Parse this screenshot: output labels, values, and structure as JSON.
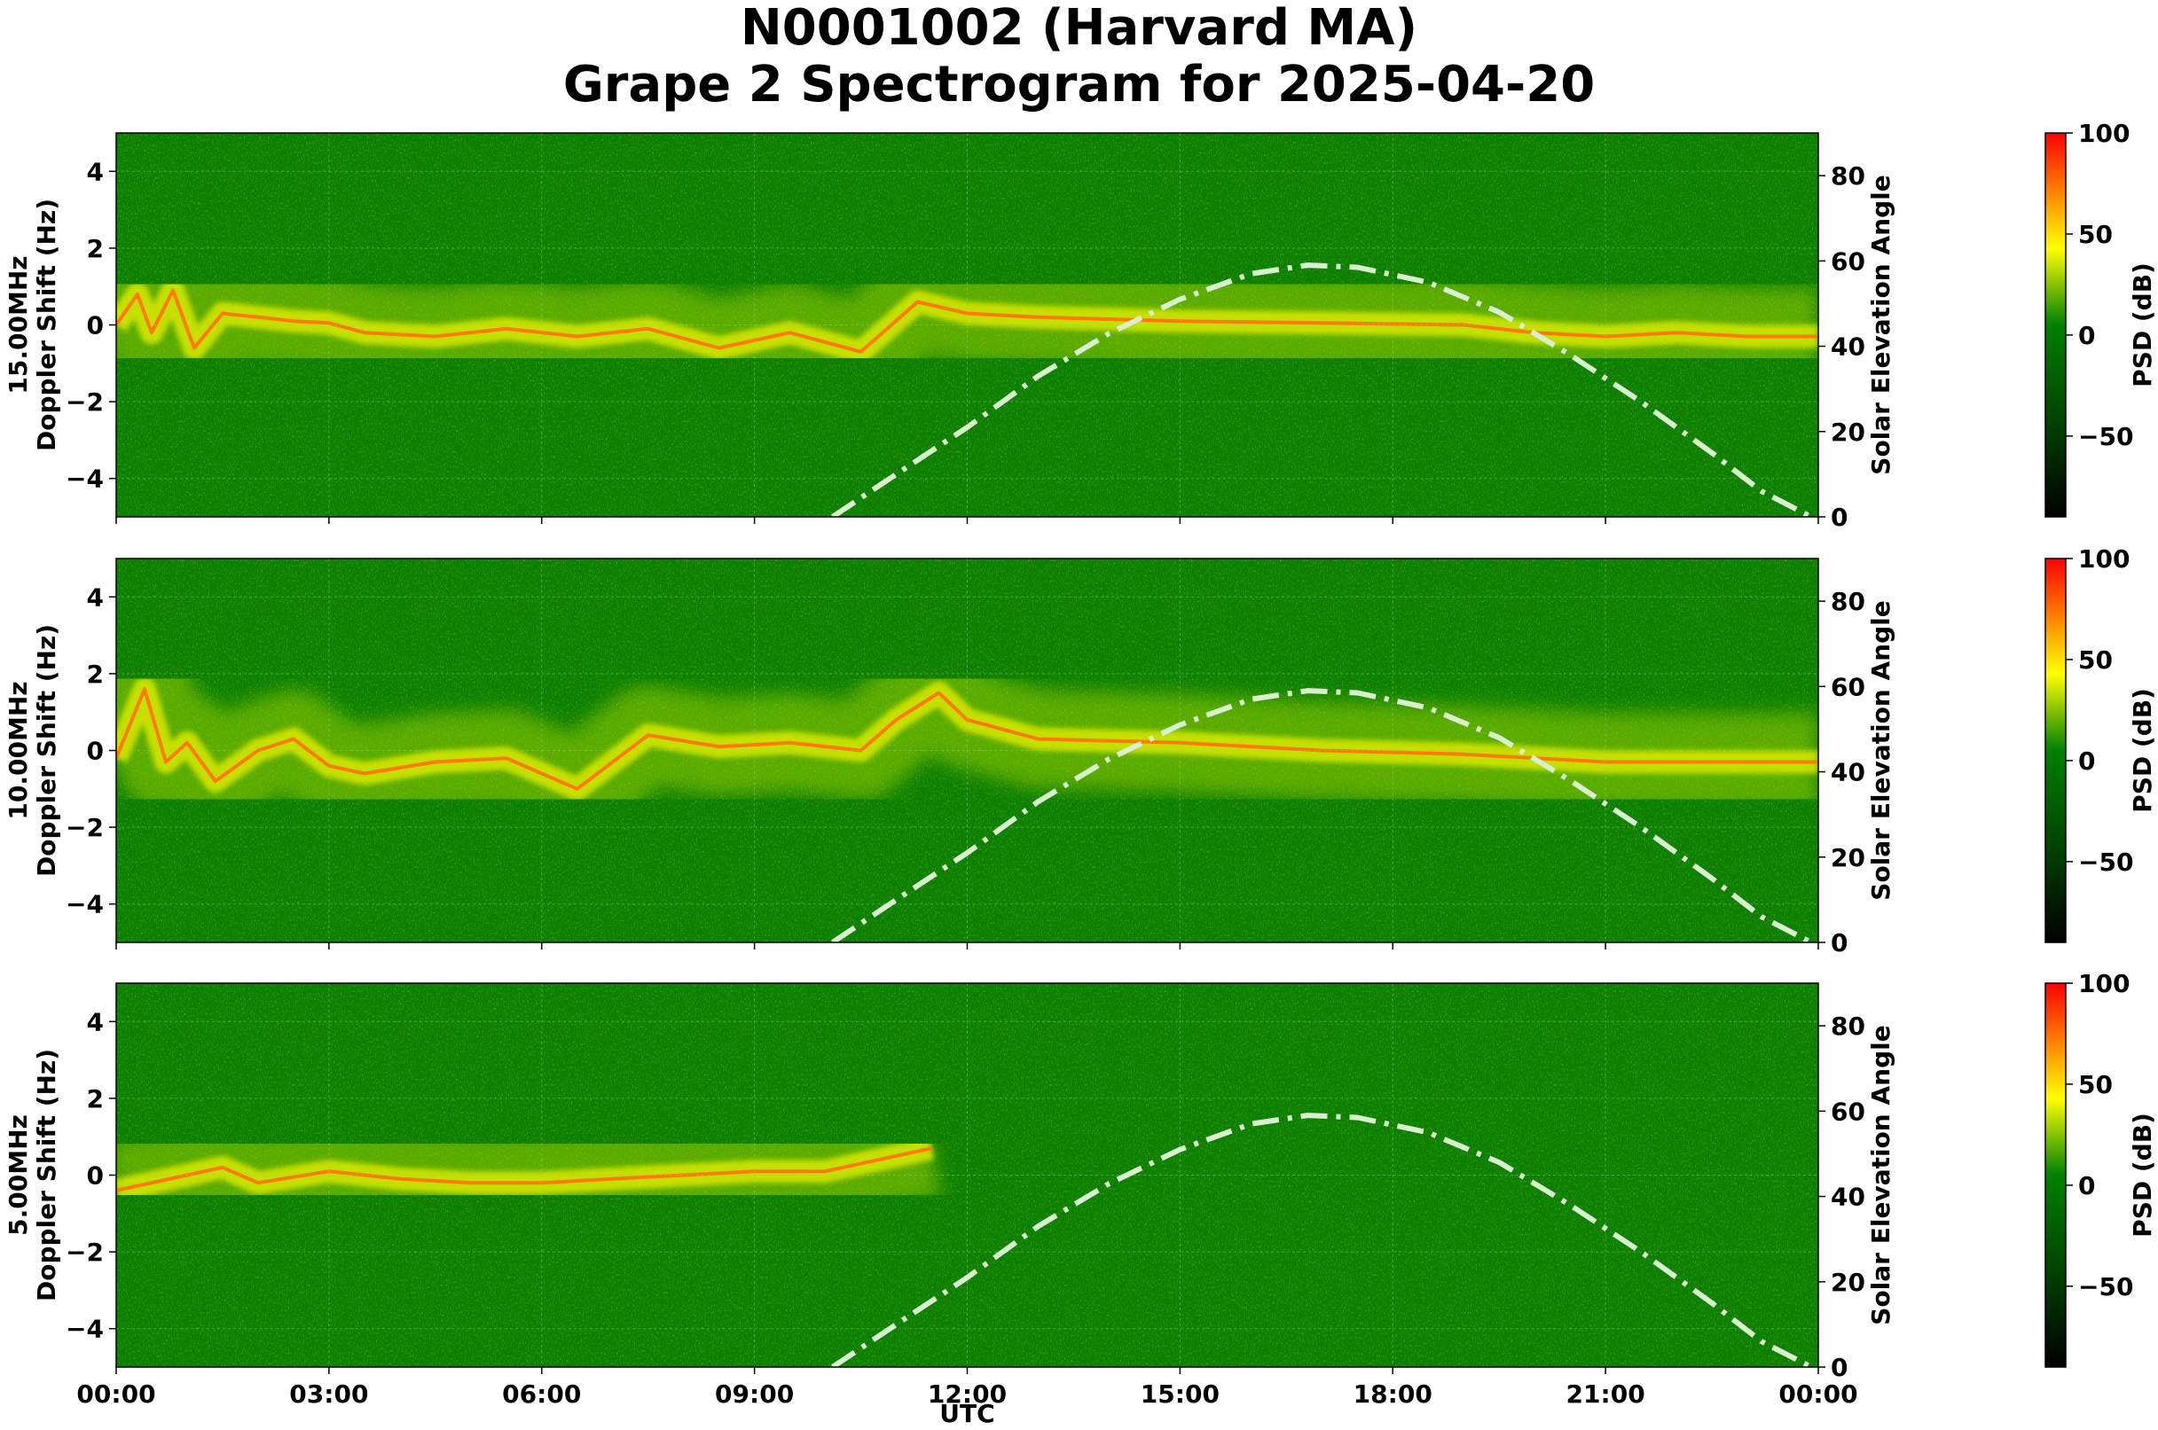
{
  "title_line1": "N0001002 (Harvard MA)",
  "title_line2": "Grape 2 Spectrogram for 2025-04-20",
  "chart_data": {
    "type": "heatmap",
    "xlabel": "UTC",
    "x_ticks": [
      "00:00",
      "03:00",
      "06:00",
      "09:00",
      "12:00",
      "15:00",
      "18:00",
      "21:00",
      "00:00"
    ],
    "xlim_hours": [
      0,
      24
    ],
    "grid": true,
    "colorbar": {
      "label": "PSD (dB)",
      "ticks": [
        100,
        50,
        0,
        -50
      ],
      "range": [
        -90,
        100
      ],
      "colors": [
        "#000000",
        "#008000",
        "#ffff00",
        "#ff0000"
      ]
    },
    "right_axis": {
      "label": "Solar Elevation Angle",
      "ticks": [
        0,
        20,
        40,
        60,
        80
      ],
      "ylim": [
        0,
        90
      ]
    },
    "panels": [
      {
        "frequency": "15.00MHz",
        "ylabel": "Doppler Shift (Hz)",
        "y_ticks": [
          4,
          2,
          0,
          -2,
          -4
        ],
        "ylim": [
          -5,
          5
        ],
        "trace_hz": [
          [
            0,
            0
          ],
          [
            0.3,
            0.8
          ],
          [
            0.5,
            -0.2
          ],
          [
            0.8,
            0.9
          ],
          [
            1.1,
            -0.6
          ],
          [
            1.5,
            0.3
          ],
          [
            2,
            0.2
          ],
          [
            2.5,
            0.1
          ],
          [
            3,
            0.05
          ],
          [
            3.5,
            -0.2
          ],
          [
            4.5,
            -0.3
          ],
          [
            5.5,
            -0.1
          ],
          [
            6.5,
            -0.3
          ],
          [
            7.5,
            -0.1
          ],
          [
            8.5,
            -0.6
          ],
          [
            9.5,
            -0.2
          ],
          [
            10.5,
            -0.7
          ],
          [
            11.3,
            0.6
          ],
          [
            12,
            0.3
          ],
          [
            13,
            0.2
          ],
          [
            15,
            0.1
          ],
          [
            17,
            0.05
          ],
          [
            19,
            0.0
          ],
          [
            20,
            -0.2
          ],
          [
            21,
            -0.3
          ],
          [
            22,
            -0.2
          ],
          [
            23,
            -0.3
          ],
          [
            24,
            -0.3
          ]
        ]
      },
      {
        "frequency": "10.00MHz",
        "ylabel": "Doppler Shift (Hz)",
        "y_ticks": [
          4,
          2,
          0,
          -2,
          -4
        ],
        "ylim": [
          -5,
          5
        ],
        "trace_hz": [
          [
            0,
            -0.2
          ],
          [
            0.4,
            1.6
          ],
          [
            0.7,
            -0.3
          ],
          [
            1,
            0.2
          ],
          [
            1.4,
            -0.8
          ],
          [
            2,
            0.0
          ],
          [
            2.5,
            0.3
          ],
          [
            3,
            -0.4
          ],
          [
            3.5,
            -0.6
          ],
          [
            4.5,
            -0.3
          ],
          [
            5.5,
            -0.2
          ],
          [
            6.5,
            -1.0
          ],
          [
            7.5,
            0.4
          ],
          [
            8.5,
            0.1
          ],
          [
            9.5,
            0.2
          ],
          [
            10.5,
            0.0
          ],
          [
            11,
            0.8
          ],
          [
            11.6,
            1.5
          ],
          [
            12,
            0.8
          ],
          [
            13,
            0.3
          ],
          [
            15,
            0.2
          ],
          [
            17,
            0.0
          ],
          [
            19,
            -0.1
          ],
          [
            21,
            -0.3
          ],
          [
            24,
            -0.3
          ]
        ]
      },
      {
        "frequency": "5.00MHz",
        "ylabel": "Doppler Shift (Hz)",
        "y_ticks": [
          4,
          2,
          0,
          -2,
          -4
        ],
        "ylim": [
          -5,
          5
        ],
        "trace_hz": [
          [
            0,
            -0.4
          ],
          [
            1,
            0.0
          ],
          [
            1.5,
            0.2
          ],
          [
            2,
            -0.2
          ],
          [
            3,
            0.1
          ],
          [
            4,
            -0.1
          ],
          [
            5,
            -0.2
          ],
          [
            6,
            -0.2
          ],
          [
            7,
            -0.1
          ],
          [
            8,
            0.0
          ],
          [
            9,
            0.1
          ],
          [
            10,
            0.1
          ],
          [
            11,
            0.5
          ],
          [
            11.5,
            0.7
          ]
        ]
      }
    ],
    "solar_elevation": {
      "style": "dash-dot",
      "color": "#d8efd0",
      "points": [
        [
          10.1,
          0
        ],
        [
          11,
          10
        ],
        [
          12,
          21
        ],
        [
          13,
          33
        ],
        [
          14,
          43
        ],
        [
          15,
          51
        ],
        [
          16,
          57
        ],
        [
          16.8,
          59
        ],
        [
          17.5,
          58.5
        ],
        [
          18.5,
          55
        ],
        [
          19.5,
          48
        ],
        [
          20.5,
          38
        ],
        [
          21.5,
          27
        ],
        [
          22.5,
          15
        ],
        [
          23.2,
          6
        ],
        [
          23.9,
          0
        ]
      ]
    }
  }
}
